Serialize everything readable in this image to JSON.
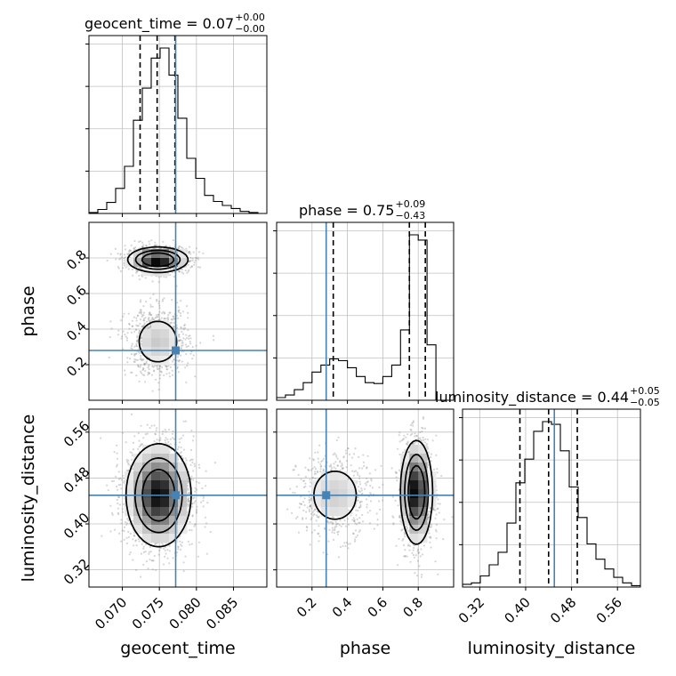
{
  "chart_data": {
    "type": "corner",
    "parameters": [
      "geocent_time",
      "phase",
      "luminosity_distance"
    ],
    "truths": {
      "geocent_time": 0.0772,
      "phase": 0.28,
      "luminosity_distance": 0.45
    },
    "colors": {
      "truth": "#4682b4",
      "hist": "#000000",
      "grid": "#c0c0c0",
      "scatter": "#8a8a8a"
    },
    "grid": true,
    "ranges": {
      "geocent_time": [
        0.0655,
        0.0895
      ],
      "phase": [
        0.0,
        1.0
      ],
      "luminosity_distance": [
        0.29,
        0.6
      ]
    },
    "ticks": {
      "geocent_time": [
        "0.070",
        "0.075",
        "0.080",
        "0.085"
      ],
      "phase": [
        "0.2",
        "0.4",
        "0.6",
        "0.8"
      ],
      "luminosity_distance": [
        "0.32",
        "0.40",
        "0.48",
        "0.56"
      ]
    },
    "axis_labels": {
      "x": [
        "geocent_time",
        "phase",
        "luminosity_distance"
      ],
      "y": [
        "phase",
        "luminosity_distance"
      ]
    },
    "titles": [
      {
        "param": "geocent_time",
        "text": "geocent_time = 0.07",
        "sup": "+0.00",
        "sub": "−0.00"
      },
      {
        "param": "phase",
        "text": "phase = 0.75",
        "sup": "+0.09",
        "sub": "−0.43"
      },
      {
        "param": "luminosity_distance",
        "text": "luminosity_distance = 0.44",
        "sup": "+0.05",
        "sub": "−0.05"
      }
    ],
    "quantiles": {
      "geocent_time": [
        0.0724,
        0.0747,
        0.0771
      ],
      "phase": [
        0.32,
        0.75,
        0.84
      ],
      "luminosity_distance": [
        0.39,
        0.44,
        0.49
      ]
    },
    "histograms": {
      "geocent_time": {
        "edges": [
          0.0655,
          0.0667,
          0.0679,
          0.0691,
          0.0703,
          0.0715,
          0.0727,
          0.0739,
          0.0751,
          0.0763,
          0.0775,
          0.0787,
          0.0799,
          0.0811,
          0.0823,
          0.0835,
          0.0847,
          0.0859,
          0.0871,
          0.0883,
          0.0895
        ],
        "counts": [
          1,
          4,
          11,
          25,
          47,
          93,
          125,
          155,
          165,
          138,
          95,
          55,
          35,
          18,
          12,
          8,
          5,
          2,
          1,
          0
        ]
      },
      "phase": {
        "edges": [
          0.0,
          0.05,
          0.1,
          0.15,
          0.2,
          0.25,
          0.3,
          0.35,
          0.4,
          0.45,
          0.5,
          0.55,
          0.6,
          0.65,
          0.7,
          0.75,
          0.8,
          0.85,
          0.9,
          0.95,
          1.0
        ],
        "counts": [
          3,
          6,
          12,
          20,
          32,
          40,
          47,
          45,
          37,
          27,
          20,
          19,
          27,
          40,
          80,
          188,
          182,
          63,
          0,
          0
        ]
      },
      "luminosity_distance": {
        "edges": [
          0.29,
          0.3055,
          0.321,
          0.3365,
          0.352,
          0.3675,
          0.383,
          0.3985,
          0.414,
          0.4295,
          0.445,
          0.4605,
          0.476,
          0.4915,
          0.507,
          0.5225,
          0.538,
          0.5535,
          0.569,
          0.5845,
          0.6
        ],
        "counts": [
          2,
          3,
          8,
          16,
          25,
          46,
          75,
          92,
          112,
          119,
          117,
          98,
          72,
          50,
          31,
          20,
          13,
          7,
          3,
          1
        ]
      }
    },
    "density_2d": [
      {
        "x": "geocent_time",
        "y": "phase",
        "modes": [
          {
            "x": 0.0748,
            "y": 0.79,
            "sx": 0.002,
            "sy": 0.035,
            "w": 1.0
          },
          {
            "x": 0.0748,
            "y": 0.33,
            "sx": 0.002,
            "sy": 0.09,
            "w": 0.28
          }
        ]
      },
      {
        "x": "geocent_time",
        "y": "luminosity_distance",
        "modes": [
          {
            "x": 0.0749,
            "y": 0.45,
            "sx": 0.0022,
            "sy": 0.045,
            "w": 1.0
          }
        ]
      },
      {
        "x": "phase",
        "y": "luminosity_distance",
        "modes": [
          {
            "x": 0.79,
            "y": 0.455,
            "sx": 0.045,
            "sy": 0.045,
            "w": 1.0
          },
          {
            "x": 0.33,
            "y": 0.45,
            "sx": 0.1,
            "sy": 0.035,
            "w": 0.27
          }
        ]
      }
    ]
  }
}
